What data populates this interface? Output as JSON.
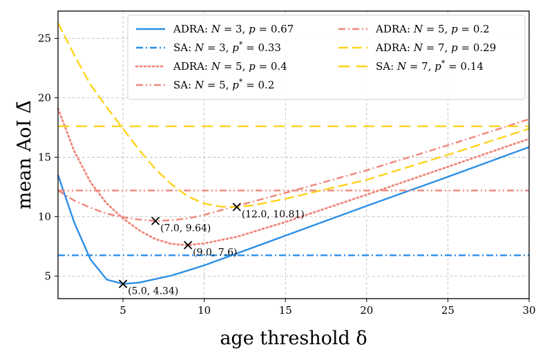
{
  "chart_data": {
    "type": "line",
    "title": "",
    "xlabel": "age threshold δ",
    "ylabel": "mean AoI Δ̄",
    "xlim": [
      1,
      30
    ],
    "ylim": [
      3.1,
      27.3
    ],
    "grid": true,
    "legend_position": "top-right",
    "xticks": [
      "5",
      "10",
      "15",
      "20",
      "25",
      "30"
    ],
    "yticks": [
      "5",
      "10",
      "15",
      "20",
      "25"
    ],
    "series": [
      {
        "name": "ADRA: N = 3, p = 0.67",
        "kind": "adra",
        "color": "#2a8ee8",
        "dash": "solid",
        "x": [
          1,
          2,
          3,
          4,
          5,
          6,
          8,
          10,
          15,
          20,
          25,
          30
        ],
        "y": [
          13.5,
          9.5,
          6.4,
          4.7,
          4.34,
          4.45,
          5.05,
          5.9,
          8.4,
          10.9,
          13.35,
          15.85
        ]
      },
      {
        "name": "SA: N = 3, p* = 0.33",
        "kind": "sa",
        "color": "#2a8ee8",
        "dash": "dashdot",
        "x": [
          1,
          30
        ],
        "y": [
          6.75,
          6.75
        ]
      },
      {
        "name": "ADRA: N = 5, p = 0.4",
        "kind": "adra",
        "color": "#f0857a",
        "dash": "dotted",
        "x": [
          1,
          2,
          3,
          4,
          5,
          6,
          7,
          8,
          9,
          10,
          12,
          15,
          20,
          25,
          30
        ],
        "y": [
          19.1,
          15.5,
          12.9,
          11.1,
          9.85,
          8.85,
          8.1,
          7.7,
          7.6,
          7.75,
          8.3,
          9.55,
          11.85,
          14.2,
          16.55
        ]
      },
      {
        "name": "SA: N = 5, p* = 0.2",
        "kind": "sa",
        "color": "#f0857a",
        "dash": "dashdotdot",
        "x": [
          1,
          30
        ],
        "y": [
          12.2,
          12.2
        ]
      },
      {
        "name": "ADRA: N = 5, p = 0.2",
        "kind": "adra",
        "color": "#f0857a",
        "dash": "dashdot",
        "x": [
          1,
          2,
          3,
          4,
          5,
          6,
          7,
          8,
          9,
          10,
          12,
          15,
          20,
          25,
          30
        ],
        "y": [
          12.2,
          11.35,
          10.75,
          10.25,
          9.95,
          9.75,
          9.64,
          9.7,
          9.85,
          10.15,
          10.9,
          12.0,
          13.9,
          16.0,
          18.2
        ]
      },
      {
        "name": "ADRA: N = 7, p = 0.29",
        "kind": "adra",
        "color": "#ffd21a",
        "dash": "dashed",
        "x": [
          1,
          2,
          3,
          4,
          5,
          6,
          7,
          8,
          9,
          10,
          11,
          12,
          13,
          15,
          20,
          25,
          30
        ],
        "y": [
          26.3,
          23.6,
          21.1,
          19.2,
          17.4,
          15.6,
          14.0,
          12.7,
          11.7,
          11.1,
          10.85,
          10.81,
          10.95,
          11.5,
          13.1,
          15.2,
          17.4
        ]
      },
      {
        "name": "SA: N = 7, p* = 0.14",
        "kind": "sa",
        "color": "#ffd21a",
        "dash": "longdash",
        "x": [
          1,
          30
        ],
        "y": [
          17.6,
          17.6
        ]
      }
    ],
    "markers": [
      {
        "x": 5.0,
        "y": 4.34,
        "label": "(5.0, 4.34)"
      },
      {
        "x": 7.0,
        "y": 9.64,
        "label": "(7.0, 9.64)"
      },
      {
        "x": 9.0,
        "y": 7.6,
        "label": "(9.0, 7.6)"
      },
      {
        "x": 12.0,
        "y": 10.81,
        "label": "(12.0, 10.81)"
      }
    ],
    "legend": {
      "col1": [
        {
          "series": 0,
          "prefix": "ADRA: ",
          "N": "3",
          "p": "0.67",
          "star": false
        },
        {
          "series": 1,
          "prefix": "SA: ",
          "N": "3",
          "p": "0.33",
          "star": true
        },
        {
          "series": 2,
          "prefix": "ADRA: ",
          "N": "5",
          "p": "0.4",
          "star": false
        },
        {
          "series": 3,
          "prefix": "SA: ",
          "N": "5",
          "p": "0.2",
          "star": true
        }
      ],
      "col2": [
        {
          "series": 4,
          "prefix": "ADRA: ",
          "N": "5",
          "p": "0.2",
          "star": false
        },
        {
          "series": 5,
          "prefix": "ADRA: ",
          "N": "7",
          "p": "0.29",
          "star": false
        },
        {
          "series": 6,
          "prefix": "SA: ",
          "N": "7",
          "p": "0.14",
          "star": true
        }
      ]
    }
  }
}
